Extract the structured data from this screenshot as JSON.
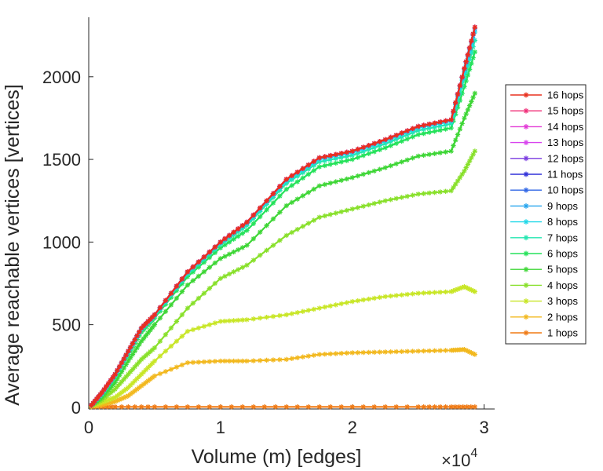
{
  "chart_data": {
    "type": "line",
    "title": "",
    "xlabel": "Volume (m) [edges]",
    "ylabel": "Average reachable vertices [vertices]",
    "x_multiplier_label": "×10",
    "x_multiplier_exp": "4",
    "xlim": [
      0,
      3.08
    ],
    "ylim": [
      -10,
      2360
    ],
    "x_ticks": [
      0,
      1,
      2,
      3
    ],
    "x_tick_labels": [
      "0",
      "1",
      "2",
      "3"
    ],
    "y_ticks": [
      0,
      500,
      1000,
      1500,
      2000
    ],
    "y_tick_labels": [
      "0",
      "500",
      "1000",
      "1500",
      "2000"
    ],
    "grid": false,
    "legend_position": "right",
    "marker": "asterisk",
    "series": [
      {
        "name": "16 hops",
        "color": "#e8301e",
        "x": [
          0.02,
          0.1,
          0.2,
          0.3,
          0.4,
          0.5,
          0.75,
          1.0,
          1.2,
          1.5,
          1.75,
          2.0,
          2.25,
          2.5,
          2.75,
          2.85,
          2.93
        ],
        "y": [
          12,
          90,
          200,
          340,
          480,
          560,
          820,
          1000,
          1120,
          1380,
          1510,
          1550,
          1620,
          1700,
          1740,
          2050,
          2300
        ]
      },
      {
        "name": "15 hops",
        "color": "#f0307a",
        "x": [
          0.02,
          0.1,
          0.2,
          0.3,
          0.4,
          0.5,
          0.75,
          1.0,
          1.2,
          1.5,
          1.75,
          2.0,
          2.25,
          2.5,
          2.75,
          2.85,
          2.93
        ],
        "y": [
          12,
          90,
          200,
          340,
          480,
          560,
          820,
          1000,
          1120,
          1380,
          1510,
          1550,
          1620,
          1700,
          1740,
          2050,
          2300
        ]
      },
      {
        "name": "14 hops",
        "color": "#e23ad6",
        "x": [
          0.02,
          0.1,
          0.2,
          0.3,
          0.4,
          0.5,
          0.75,
          1.0,
          1.2,
          1.5,
          1.75,
          2.0,
          2.25,
          2.5,
          2.75,
          2.85,
          2.93
        ],
        "y": [
          12,
          90,
          200,
          340,
          480,
          560,
          820,
          1000,
          1120,
          1380,
          1510,
          1550,
          1620,
          1700,
          1740,
          2050,
          2300
        ]
      },
      {
        "name": "13 hops",
        "color": "#d844ee",
        "x": [
          0.02,
          0.1,
          0.2,
          0.3,
          0.4,
          0.5,
          0.75,
          1.0,
          1.2,
          1.5,
          1.75,
          2.0,
          2.25,
          2.5,
          2.75,
          2.85,
          2.93
        ],
        "y": [
          12,
          90,
          200,
          340,
          480,
          560,
          820,
          1000,
          1120,
          1380,
          1510,
          1550,
          1620,
          1700,
          1740,
          2050,
          2300
        ]
      },
      {
        "name": "12 hops",
        "color": "#7a3ae0",
        "x": [
          0.02,
          0.1,
          0.2,
          0.3,
          0.4,
          0.5,
          0.75,
          1.0,
          1.2,
          1.5,
          1.75,
          2.0,
          2.25,
          2.5,
          2.75,
          2.85,
          2.93
        ],
        "y": [
          12,
          90,
          200,
          340,
          480,
          560,
          820,
          1000,
          1120,
          1380,
          1510,
          1550,
          1620,
          1700,
          1740,
          2050,
          2300
        ]
      },
      {
        "name": "11 hops",
        "color": "#3030d8",
        "x": [
          0.02,
          0.1,
          0.2,
          0.3,
          0.4,
          0.5,
          0.75,
          1.0,
          1.2,
          1.5,
          1.75,
          2.0,
          2.25,
          2.5,
          2.75,
          2.85,
          2.93
        ],
        "y": [
          12,
          90,
          200,
          340,
          480,
          560,
          820,
          1000,
          1120,
          1380,
          1510,
          1550,
          1620,
          1700,
          1740,
          2050,
          2300
        ]
      },
      {
        "name": "10 hops",
        "color": "#2f66e6",
        "x": [
          0.02,
          0.1,
          0.2,
          0.3,
          0.4,
          0.5,
          0.75,
          1.0,
          1.2,
          1.5,
          1.75,
          2.0,
          2.25,
          2.5,
          2.75,
          2.85,
          2.93
        ],
        "y": [
          12,
          90,
          200,
          340,
          480,
          560,
          820,
          1000,
          1120,
          1380,
          1510,
          1550,
          1620,
          1700,
          1740,
          2050,
          2300
        ]
      },
      {
        "name": "9 hops",
        "color": "#27a5ee",
        "x": [
          0.02,
          0.1,
          0.2,
          0.3,
          0.4,
          0.5,
          0.75,
          1.0,
          1.2,
          1.5,
          1.75,
          2.0,
          2.25,
          2.5,
          2.75,
          2.85,
          2.93
        ],
        "y": [
          12,
          88,
          198,
          338,
          478,
          558,
          818,
          998,
          1118,
          1378,
          1508,
          1548,
          1618,
          1698,
          1738,
          2045,
          2290
        ]
      },
      {
        "name": "8 hops",
        "color": "#22d8e8",
        "x": [
          0.02,
          0.1,
          0.2,
          0.3,
          0.4,
          0.5,
          0.75,
          1.0,
          1.2,
          1.5,
          1.75,
          2.0,
          2.25,
          2.5,
          2.75,
          2.85,
          2.93
        ],
        "y": [
          12,
          85,
          195,
          335,
          475,
          555,
          815,
          995,
          1112,
          1370,
          1500,
          1540,
          1610,
          1690,
          1730,
          2030,
          2270
        ]
      },
      {
        "name": "7 hops",
        "color": "#22e6b0",
        "x": [
          0.02,
          0.1,
          0.2,
          0.3,
          0.4,
          0.5,
          0.75,
          1.0,
          1.2,
          1.5,
          1.75,
          2.0,
          2.25,
          2.5,
          2.75,
          2.85,
          2.93
        ],
        "y": [
          12,
          80,
          190,
          330,
          470,
          550,
          805,
          985,
          1100,
          1355,
          1485,
          1525,
          1595,
          1675,
          1715,
          1990,
          2220
        ]
      },
      {
        "name": "6 hops",
        "color": "#25e25a",
        "x": [
          0.02,
          0.1,
          0.2,
          0.3,
          0.4,
          0.5,
          0.75,
          1.0,
          1.2,
          1.5,
          1.75,
          2.0,
          2.25,
          2.5,
          2.75,
          2.85,
          2.93
        ],
        "y": [
          12,
          75,
          180,
          320,
          455,
          540,
          790,
          965,
          1070,
          1320,
          1455,
          1500,
          1570,
          1650,
          1690,
          1940,
          2150
        ]
      },
      {
        "name": "5 hops",
        "color": "#3ed636",
        "x": [
          0.02,
          0.1,
          0.2,
          0.3,
          0.4,
          0.5,
          0.75,
          1.0,
          1.2,
          1.5,
          1.75,
          2.0,
          2.25,
          2.5,
          2.75,
          2.85,
          2.93
        ],
        "y": [
          12,
          60,
          150,
          280,
          400,
          500,
          740,
          900,
          980,
          1220,
          1340,
          1390,
          1450,
          1520,
          1550,
          1750,
          1900
        ]
      },
      {
        "name": "4 hops",
        "color": "#88e02a",
        "x": [
          0.02,
          0.1,
          0.2,
          0.3,
          0.4,
          0.5,
          0.75,
          1.0,
          1.2,
          1.5,
          1.75,
          2.0,
          2.25,
          2.5,
          2.75,
          2.85,
          2.93
        ],
        "y": [
          10,
          45,
          110,
          200,
          290,
          360,
          600,
          780,
          860,
          1040,
          1150,
          1200,
          1250,
          1290,
          1310,
          1430,
          1550
        ]
      },
      {
        "name": "3 hops",
        "color": "#c8e626",
        "x": [
          0.02,
          0.1,
          0.2,
          0.3,
          0.4,
          0.5,
          0.75,
          1.0,
          1.2,
          1.5,
          1.75,
          2.0,
          2.25,
          2.5,
          2.75,
          2.85,
          2.93
        ],
        "y": [
          8,
          30,
          60,
          120,
          200,
          280,
          460,
          520,
          530,
          560,
          600,
          640,
          670,
          690,
          700,
          730,
          700
        ]
      },
      {
        "name": "2 hops",
        "color": "#f2b81e",
        "x": [
          0.02,
          0.1,
          0.2,
          0.3,
          0.4,
          0.5,
          0.75,
          1.0,
          1.2,
          1.5,
          1.75,
          2.0,
          2.25,
          2.5,
          2.75,
          2.85,
          2.93
        ],
        "y": [
          5,
          15,
          35,
          70,
          130,
          190,
          270,
          280,
          280,
          290,
          320,
          330,
          335,
          340,
          345,
          350,
          320
        ]
      },
      {
        "name": "1 hops",
        "color": "#f07a14",
        "x": [
          0.02,
          0.2,
          0.5,
          1.0,
          1.5,
          2.0,
          2.5,
          2.75,
          2.93
        ],
        "y": [
          3,
          3,
          3,
          3,
          3,
          3,
          3,
          3,
          3
        ]
      }
    ]
  }
}
